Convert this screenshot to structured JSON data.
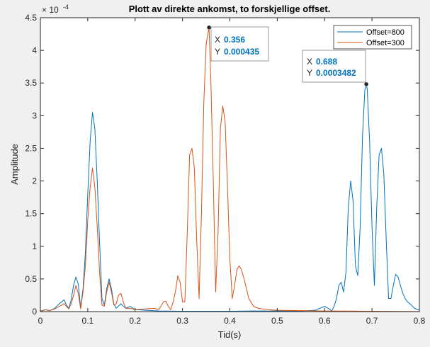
{
  "chart_data": {
    "type": "line",
    "title": "Plott av direkte ankomst, to forskjellige offset.",
    "xlabel": "Tid(s)",
    "ylabel": "Amplitude",
    "y_exponent_label": "× 10",
    "y_exponent_power": "-4",
    "xlim": [
      0,
      0.8
    ],
    "ylim": [
      0,
      0.00045
    ],
    "x_ticks": [
      "0",
      "0.1",
      "0.2",
      "0.3",
      "0.4",
      "0.5",
      "0.6",
      "0.7",
      "0.8"
    ],
    "y_ticks": [
      "0",
      "0.5",
      "1",
      "1.5",
      "2",
      "2.5",
      "3",
      "3.5",
      "4",
      "4.5"
    ],
    "grid": false,
    "legend_position": "top-right",
    "series": [
      {
        "name": "Offset=800",
        "color": "#0072bd",
        "x": [
          0,
          0.01,
          0.02,
          0.03,
          0.04,
          0.05,
          0.055,
          0.06,
          0.065,
          0.07,
          0.075,
          0.08,
          0.085,
          0.09,
          0.095,
          0.1,
          0.105,
          0.11,
          0.115,
          0.12,
          0.125,
          0.13,
          0.135,
          0.14,
          0.145,
          0.15,
          0.155,
          0.16,
          0.17,
          0.18,
          0.19,
          0.2,
          0.25,
          0.3,
          0.35,
          0.4,
          0.45,
          0.5,
          0.55,
          0.58,
          0.6,
          0.61,
          0.615,
          0.62,
          0.625,
          0.63,
          0.635,
          0.64,
          0.645,
          0.65,
          0.655,
          0.66,
          0.665,
          0.67,
          0.675,
          0.68,
          0.685,
          0.688,
          0.69,
          0.695,
          0.7,
          0.705,
          0.71,
          0.715,
          0.72,
          0.725,
          0.73,
          0.735,
          0.74,
          0.745,
          0.75,
          0.755,
          0.76,
          0.765,
          0.77,
          0.775,
          0.78,
          0.79,
          0.8
        ],
        "y": [
          0.0,
          3e-06,
          1.5e-06,
          5e-06,
          1.2e-05,
          1.8e-05,
          1e-05,
          5e-06,
          1.8e-05,
          4e-05,
          5.3e-05,
          4.2e-05,
          6e-06,
          3.5e-05,
          9e-05,
          0.00018,
          0.00026,
          0.000305,
          0.00028,
          0.0002,
          0.000105,
          2e-05,
          1e-05,
          3.5e-05,
          5e-05,
          3.5e-05,
          1.2e-05,
          5e-06,
          1.2e-05,
          5e-06,
          8e-06,
          3e-06,
          1e-06,
          5e-07,
          5e-07,
          5e-07,
          1e-06,
          1e-06,
          1e-06,
          2e-06,
          8e-06,
          4e-06,
          1e-06,
          8e-06,
          2e-05,
          4e-05,
          4.5e-05,
          3e-05,
          6e-05,
          0.00016,
          0.0002,
          0.00017,
          7e-05,
          5.5e-05,
          0.00013,
          0.00027,
          0.00034,
          0.0003482,
          0.00034,
          0.00026,
          0.00013,
          4e-05,
          0.00016,
          0.00024,
          0.00025,
          0.00021,
          0.00011,
          2e-05,
          2e-05,
          4e-05,
          5.7e-05,
          5.3e-05,
          4e-05,
          2.8e-05,
          2e-05,
          1.5e-05,
          1.2e-05,
          5e-06,
          2e-06
        ]
      },
      {
        "name": "Offset=300",
        "color": "#d95319",
        "x": [
          0,
          0.01,
          0.02,
          0.03,
          0.04,
          0.05,
          0.055,
          0.06,
          0.065,
          0.07,
          0.075,
          0.08,
          0.085,
          0.09,
          0.095,
          0.1,
          0.105,
          0.11,
          0.115,
          0.12,
          0.125,
          0.13,
          0.135,
          0.14,
          0.145,
          0.15,
          0.155,
          0.16,
          0.165,
          0.17,
          0.175,
          0.18,
          0.19,
          0.2,
          0.22,
          0.24,
          0.25,
          0.26,
          0.265,
          0.27,
          0.275,
          0.28,
          0.285,
          0.29,
          0.295,
          0.3,
          0.305,
          0.31,
          0.315,
          0.32,
          0.325,
          0.33,
          0.335,
          0.34,
          0.345,
          0.35,
          0.356,
          0.36,
          0.365,
          0.37,
          0.375,
          0.38,
          0.385,
          0.39,
          0.395,
          0.4,
          0.405,
          0.41,
          0.415,
          0.42,
          0.425,
          0.43,
          0.435,
          0.44,
          0.45,
          0.46,
          0.47,
          0.48,
          0.5,
          0.6,
          0.7,
          0.8
        ],
        "y": [
          1e-06,
          2.5e-06,
          1.5e-06,
          4e-06,
          8e-06,
          1.2e-05,
          8e-06,
          4e-06,
          1.2e-05,
          2.5e-05,
          4e-05,
          2.8e-05,
          4e-06,
          3e-05,
          7e-05,
          0.00014,
          0.00019,
          0.00022,
          0.00019,
          0.00013,
          6e-05,
          1e-05,
          8e-06,
          3e-05,
          4.5e-05,
          3e-05,
          1e-05,
          1.2e-05,
          2.5e-05,
          2.8e-05,
          1.5e-05,
          5e-06,
          5e-06,
          3e-06,
          4e-06,
          5e-06,
          3e-06,
          1.5e-05,
          1.6e-05,
          8e-06,
          3e-06,
          1.4e-05,
          3e-05,
          5.5e-05,
          4.5e-05,
          1.5e-05,
          1.5e-05,
          0.00012,
          0.00024,
          0.00025,
          0.00022,
          0.00011,
          2e-05,
          0.00015,
          0.00032,
          0.00041,
          0.000435,
          0.00035,
          0.0002,
          3e-05,
          0.00012,
          0.00028,
          0.000315,
          0.00029,
          0.00019,
          8e-05,
          2e-05,
          4e-05,
          6.5e-05,
          7e-05,
          6.3e-05,
          5e-05,
          3.5e-05,
          2e-05,
          8e-06,
          5e-06,
          4e-06,
          3e-06,
          2e-06,
          1e-06,
          5e-07,
          2e-07
        ]
      }
    ],
    "datatips": [
      {
        "x": 0.356,
        "y": 0.000435,
        "x_label": "X",
        "x_text": "0.356",
        "y_label": "Y",
        "y_text": "0.000435"
      },
      {
        "x": 0.688,
        "y": 0.0003482,
        "x_label": "X",
        "x_text": "0.688",
        "y_label": "Y",
        "y_text": "0.0003482"
      }
    ],
    "colors": {
      "figure_background": "#f0f0f0",
      "axes_background": "#ffffff",
      "axis": "#262626",
      "datatip_value": "#0072bd"
    }
  }
}
